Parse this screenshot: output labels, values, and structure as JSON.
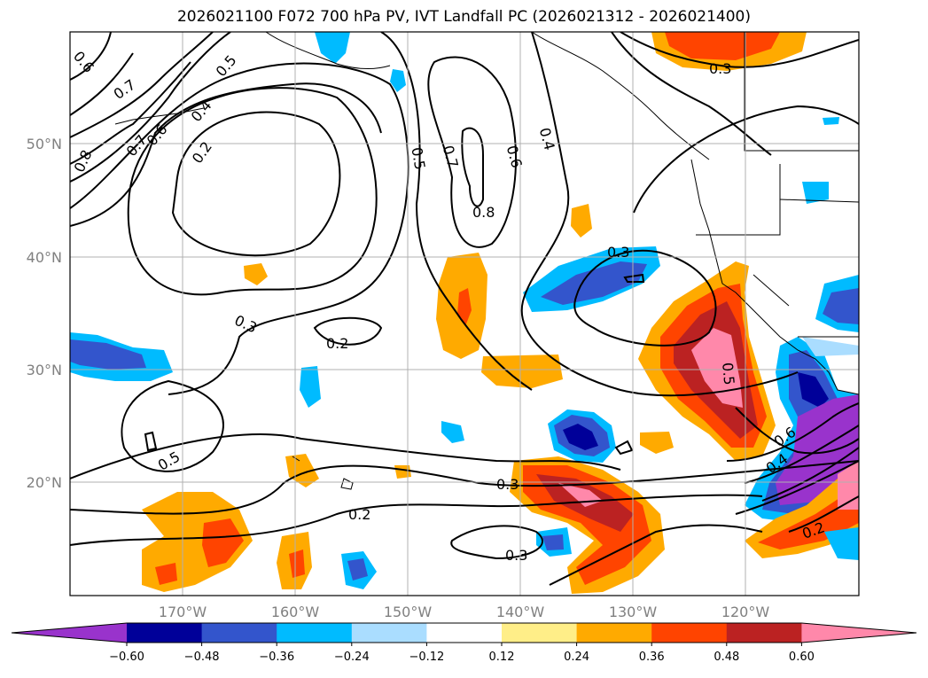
{
  "title": "2026021100 F072 700 hPa PV, IVT Landfall PC (2026021312 - 2026021400)",
  "lat_labels": [
    "50°N",
    "40°N",
    "30°N",
    "20°N"
  ],
  "lon_labels": [
    "170°W",
    "160°W",
    "150°W",
    "140°W",
    "130°W",
    "120°W"
  ],
  "contour_labels": [
    "0.6",
    "0.7",
    "0.5",
    "0.6",
    "0.4",
    "0.7",
    "0.2",
    "0.8",
    "0.5",
    "0.7",
    "0.6",
    "0.4",
    "0.8",
    "0.3",
    "0.3",
    "0.2",
    "0.5",
    "0.3",
    "0.2",
    "0.3",
    "0.5",
    "0.6",
    "0.4",
    "0.2",
    "0.3"
  ],
  "colorbar": {
    "ticks": [
      "−0.60",
      "−0.48",
      "−0.36",
      "−0.24",
      "−0.12",
      "0.12",
      "0.24",
      "0.36",
      "0.48",
      "0.60"
    ],
    "colors": [
      "#9933cc",
      "#000099",
      "#3355cc",
      "#00bbff",
      "#aaddff",
      "#ffffff",
      "#ffee88",
      "#ffaa00",
      "#ff4400",
      "#bb2222",
      "#ff88aa"
    ]
  }
}
